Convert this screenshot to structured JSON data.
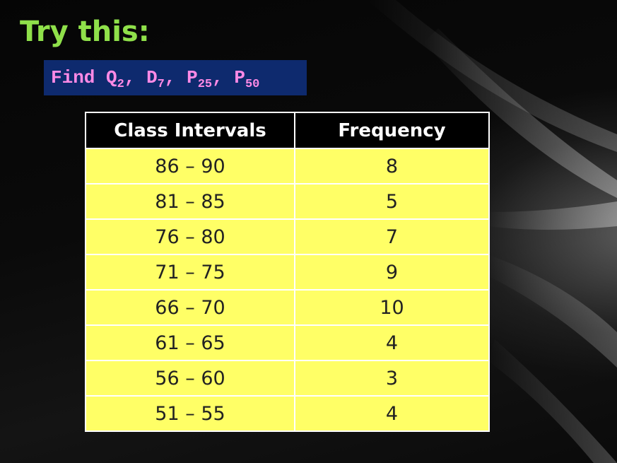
{
  "slide": {
    "title": "Try this:",
    "find": {
      "label": "Find",
      "terms": [
        {
          "base": "Q",
          "sub": "2"
        },
        {
          "base": "D",
          "sub": "7"
        },
        {
          "base": "P",
          "sub": "25"
        },
        {
          "base": "P",
          "sub": "50"
        }
      ]
    }
  },
  "table": {
    "headers": [
      "Class Intervals",
      "Frequency"
    ],
    "rows": [
      {
        "interval": "86 – 90",
        "frequency": "8"
      },
      {
        "interval": "81 – 85",
        "frequency": "5"
      },
      {
        "interval": "76 – 80",
        "frequency": "7"
      },
      {
        "interval": "71 – 75",
        "frequency": "9"
      },
      {
        "interval": "66 – 70",
        "frequency": "10"
      },
      {
        "interval": "61 – 65",
        "frequency": "4"
      },
      {
        "interval": "56 – 60",
        "frequency": "3"
      },
      {
        "interval": "51 – 55",
        "frequency": "4"
      }
    ]
  },
  "colors": {
    "title": "#8fe04a",
    "find_box_bg": "#0e2a6e",
    "find_text": "#ff8ae6",
    "cell_bg": "#ffff66",
    "header_bg": "#000000"
  }
}
